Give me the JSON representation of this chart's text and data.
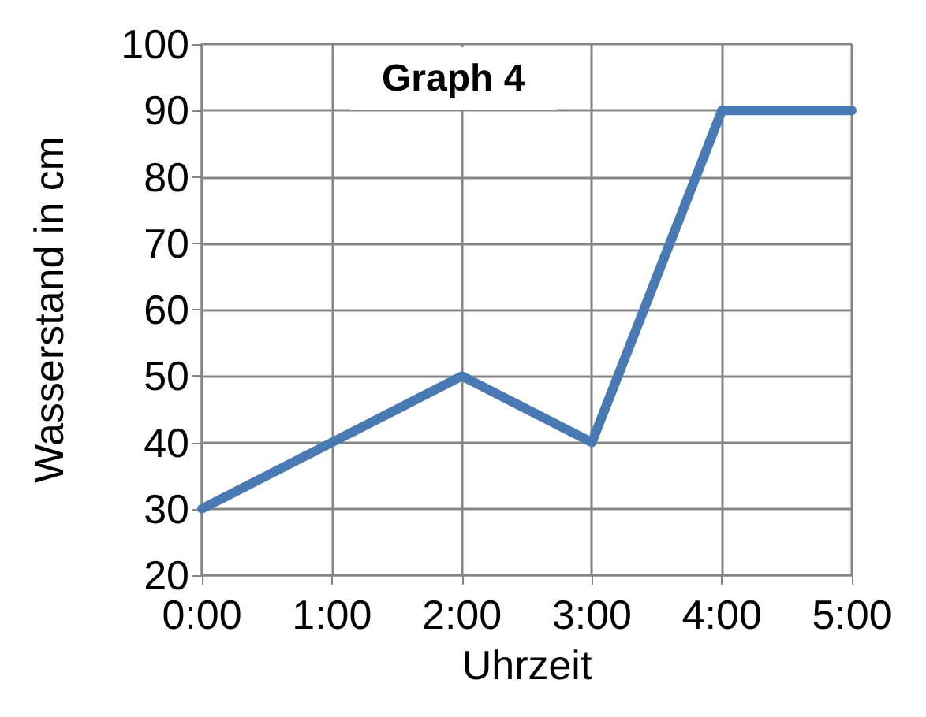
{
  "chart_data": {
    "type": "line",
    "title": "Graph 4",
    "xlabel": "Uhrzeit",
    "ylabel": "Wasserstand in cm",
    "x": [
      0,
      1,
      2,
      3,
      4,
      5
    ],
    "series": [
      {
        "color": "#4a7ab4",
        "values": [
          30,
          40,
          50,
          40,
          90,
          90
        ]
      }
    ],
    "xlim": [
      0,
      5
    ],
    "xticks": [
      {
        "value": 0,
        "label": "0:00"
      },
      {
        "value": 1,
        "label": "1:00"
      },
      {
        "value": 2,
        "label": "2:00"
      },
      {
        "value": 3,
        "label": "3:00"
      },
      {
        "value": 4,
        "label": "4:00"
      },
      {
        "value": 5,
        "label": "5:00"
      }
    ],
    "ylim": [
      20,
      100
    ],
    "yticks": [
      20,
      30,
      40,
      50,
      60,
      70,
      80,
      90,
      100
    ],
    "grid": true,
    "marker": "none",
    "line_style": "solid"
  }
}
